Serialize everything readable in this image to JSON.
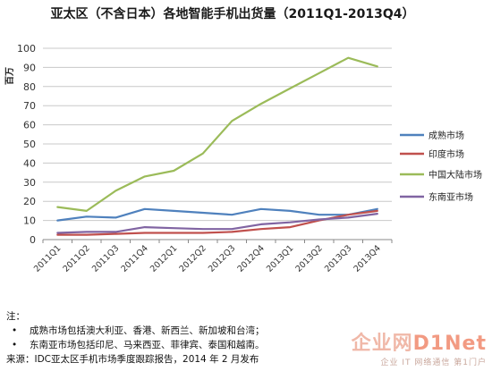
{
  "chart_data": {
    "type": "line",
    "title": "亚太区（不含日本）各地智能手机出货量（2011Q1-2013Q4）",
    "ylabel": "百万",
    "ylim": [
      0,
      100
    ],
    "yticks": [
      0,
      10,
      20,
      30,
      40,
      50,
      60,
      70,
      80,
      90,
      100
    ],
    "grid": true,
    "legend_position": "right",
    "categories": [
      "2011Q1",
      "2011Q2",
      "2011Q3",
      "2011Q4",
      "2012Q1",
      "2012Q2",
      "2012Q3",
      "2012Q4",
      "2013Q1",
      "2013Q2",
      "2013Q3",
      "2013Q4"
    ],
    "series": [
      {
        "name": "成熟市场",
        "color": "#4f81bd",
        "values": [
          10,
          12,
          11.5,
          16,
          15,
          14,
          13,
          16,
          15,
          13,
          13,
          16
        ]
      },
      {
        "name": "印度市场",
        "color": "#c0504d",
        "values": [
          2.5,
          2.5,
          3,
          3.5,
          3.5,
          3.5,
          4,
          5.5,
          6.5,
          10,
          13,
          15
        ]
      },
      {
        "name": "中国大陆市场",
        "color": "#9bbb59",
        "values": [
          17,
          15,
          25.5,
          33,
          36,
          45,
          62,
          71,
          79,
          87,
          95,
          90.5
        ]
      },
      {
        "name": "东南亚市场",
        "color": "#8064a2",
        "values": [
          3.5,
          4,
          4,
          6.5,
          6,
          5.5,
          5.5,
          8,
          9,
          10.5,
          11.5,
          13.5
        ]
      }
    ]
  },
  "notes": {
    "heading": "注：",
    "items": [
      "成熟市场包括澳大利亚、香港、新西兰、新加坡和台湾；",
      "东南亚市场包括印尼、马来西亚、菲律宾、泰国和越南。"
    ],
    "bullet": "•",
    "source": "来源：IDC亚太区手机市场季度跟踪报告，2014 年 2 月发布"
  },
  "watermark": {
    "main_prefix": "企业网",
    "main_accent": "D1Net",
    "sub": "企业 IT 网络通信 第1门户"
  }
}
